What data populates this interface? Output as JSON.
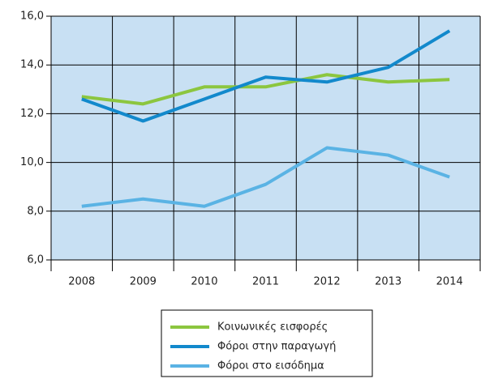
{
  "chart_data": {
    "type": "line",
    "categories": [
      "2008",
      "2009",
      "2010",
      "2011",
      "2012",
      "2013",
      "2014"
    ],
    "series": [
      {
        "name": "Κοινωνικές εισφορές",
        "color": "#8cc63f",
        "values": [
          12.7,
          12.4,
          13.1,
          13.1,
          13.6,
          13.3,
          13.4
        ]
      },
      {
        "name": "Φόροι στην παραγωγή",
        "color": "#1289cc",
        "values": [
          12.6,
          11.7,
          12.6,
          13.5,
          13.3,
          13.9,
          15.4
        ]
      },
      {
        "name": "Φόροι στο εισόδημα",
        "color": "#5ab3e4",
        "values": [
          8.2,
          8.5,
          8.2,
          9.1,
          10.6,
          10.3,
          9.4
        ]
      }
    ],
    "ylim": [
      6,
      16
    ],
    "yticks": [
      {
        "value": 6,
        "label": "6,0"
      },
      {
        "value": 8,
        "label": "8,0"
      },
      {
        "value": 10,
        "label": "10,0"
      },
      {
        "value": 12,
        "label": "12,0"
      },
      {
        "value": 14,
        "label": "14,0"
      },
      {
        "value": 16,
        "label": "16,0"
      }
    ],
    "grid": true,
    "background": "#c8e0f3"
  }
}
